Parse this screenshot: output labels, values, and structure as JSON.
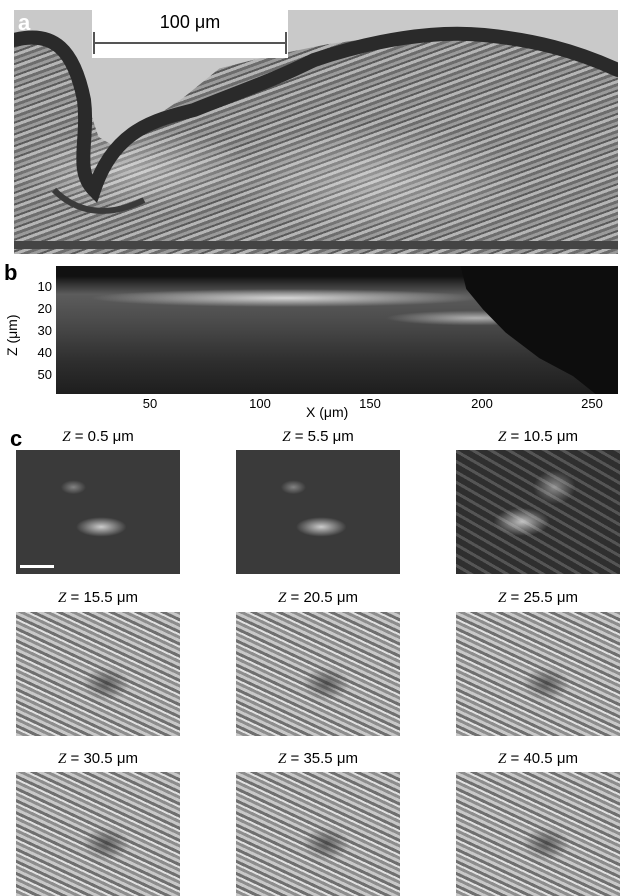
{
  "panel_a": {
    "letter": "a",
    "scale_bar_label": "100 μm"
  },
  "panel_b": {
    "letter": "b",
    "y_axis_label": "Z (μm)",
    "x_axis_label": "X (μm)",
    "y_ticks": [
      "10",
      "20",
      "30",
      "40",
      "50"
    ],
    "x_ticks": [
      "50",
      "100",
      "150",
      "200",
      "250"
    ]
  },
  "panel_c": {
    "letter": "c",
    "tiles": [
      {
        "var": "Z",
        "rest": " = 0.5 μm"
      },
      {
        "var": "Z",
        "rest": " = 5.5 μm"
      },
      {
        "var": "Z",
        "rest": " = 10.5 μm"
      },
      {
        "var": "Z",
        "rest": " = 15.5 μm"
      },
      {
        "var": "Z",
        "rest": " = 20.5 μm"
      },
      {
        "var": "Z",
        "rest": " = 25.5 μm"
      },
      {
        "var": "Z",
        "rest": " = 30.5 μm"
      },
      {
        "var": "Z",
        "rest": " = 35.5 μm"
      },
      {
        "var": "Z",
        "rest": " = 40.5 μm"
      }
    ]
  }
}
